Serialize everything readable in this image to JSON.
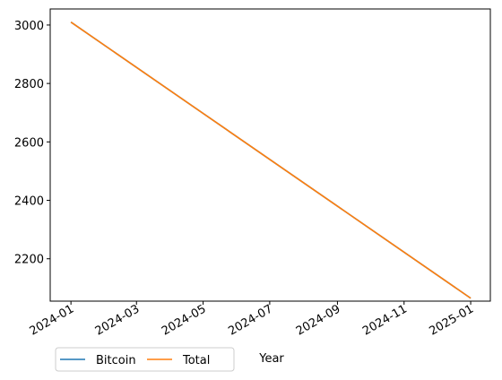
{
  "chart_data": {
    "type": "line",
    "title": "",
    "xlabel": "Year",
    "ylabel": "",
    "x_axis_type": "date",
    "xlim": [
      "2023-12-13",
      "2025-01-19"
    ],
    "ylim": [
      2055,
      3055
    ],
    "x_ticks": [
      "2024-01",
      "2024-03",
      "2024-05",
      "2024-07",
      "2024-09",
      "2024-11",
      "2025-01"
    ],
    "y_ticks": [
      2200,
      2400,
      2600,
      2800,
      3000
    ],
    "grid": false,
    "legend_position": "bottom-left, below axes",
    "series": [
      {
        "name": "Bitcoin",
        "color": "#1f77b4",
        "x": [
          "2024-01-01",
          "2025-01-01"
        ],
        "y": [
          3010,
          2065
        ]
      },
      {
        "name": "Total",
        "color": "#ff7f0e",
        "x": [
          "2024-01-01",
          "2025-01-01"
        ],
        "y": [
          3010,
          2065
        ]
      }
    ]
  }
}
